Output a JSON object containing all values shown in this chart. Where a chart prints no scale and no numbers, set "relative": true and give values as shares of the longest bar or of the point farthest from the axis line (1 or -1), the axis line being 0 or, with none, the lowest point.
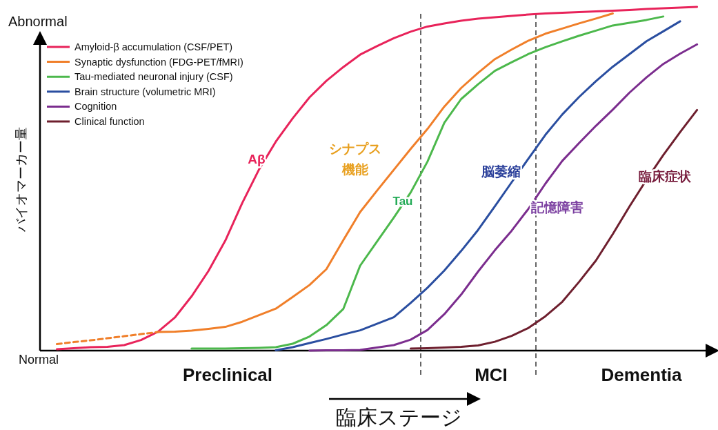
{
  "chart_data": {
    "type": "line",
    "relative": true,
    "tick_labels": false,
    "legend": "top left",
    "xlabel": "臨床ステージ",
    "ylabel": "バイオマーカー量",
    "categories": [
      null,
      null,
      null,
      null,
      null,
      null,
      null,
      null,
      null,
      null,
      null,
      null,
      null,
      null,
      null,
      null,
      null,
      null,
      null,
      null,
      null,
      null,
      null,
      null,
      null,
      null,
      null,
      null,
      null,
      null,
      null,
      null,
      null,
      null,
      null,
      null,
      null,
      null,
      null,
      null,
      null
    ],
    "annotations": [
      "Abnormal",
      "Normal",
      "Aβ",
      "シナプス",
      "機能",
      "Tau",
      "脳萎縮",
      "記憶障害",
      "臨床症状",
      "Preclinical",
      "MCI",
      "Dementia"
    ],
    "series": [
      {
        "name": "Amyloid-β accumulation (CSF/PET)",
        "color": "#e8235a",
        "values": [
          null,
          0.004,
          0.007,
          0.01,
          0.011,
          0.016,
          0.031,
          0.055,
          0.096,
          0.158,
          0.232,
          0.32,
          0.429,
          0.527,
          0.608,
          0.676,
          0.737,
          0.785,
          0.825,
          0.861,
          0.886,
          0.909,
          0.928,
          0.943,
          0.952,
          0.96,
          0.966,
          0.97,
          0.974,
          0.978,
          0.981,
          0.983,
          0.985,
          0.987,
          0.989,
          0.991,
          0.994,
          0.996,
          0.998,
          1.0,
          null
        ]
      },
      {
        "color": "#f07f2a",
        "line_style": "dashed",
        "values": [
          null,
          0.019,
          0.025,
          0.03,
          0.036,
          0.042,
          0.048,
          0.054,
          null,
          null,
          null,
          null,
          null,
          null,
          null,
          null,
          null,
          null,
          null,
          null,
          null,
          null,
          null,
          null,
          null,
          null,
          null,
          null,
          null,
          null,
          null,
          null,
          null,
          null,
          null,
          null,
          null,
          null,
          null,
          null,
          null
        ]
      },
      {
        "name": "Synaptic dysfunction (FDG-PET/fMRI)",
        "color": "#f07f2a",
        "values": [
          null,
          null,
          null,
          null,
          null,
          null,
          null,
          0.054,
          0.055,
          0.058,
          0.063,
          0.069,
          0.084,
          0.103,
          0.122,
          0.156,
          0.191,
          0.237,
          0.321,
          0.403,
          0.465,
          0.526,
          0.587,
          0.645,
          0.71,
          0.764,
          0.808,
          0.848,
          0.876,
          0.902,
          0.922,
          0.937,
          0.952,
          0.966,
          0.981,
          null,
          null,
          null,
          null,
          null,
          null
        ]
      },
      {
        "name": "Tau-mediated neuronal injury (CSF)",
        "color": "#4cb84c",
        "values": [
          null,
          null,
          null,
          null,
          null,
          null,
          null,
          null,
          null,
          0.006,
          0.006,
          0.006,
          0.007,
          0.008,
          0.01,
          0.02,
          0.041,
          0.074,
          0.121,
          0.247,
          0.317,
          0.387,
          0.46,
          0.55,
          0.663,
          0.732,
          0.775,
          0.814,
          0.839,
          0.863,
          0.883,
          0.9,
          0.916,
          0.931,
          0.946,
          0.954,
          0.962,
          0.972,
          null,
          null,
          null
        ]
      },
      {
        "name": "Brain structure (volumetric MRI)",
        "color": "#2a4ea0",
        "values": [
          null,
          null,
          null,
          null,
          null,
          null,
          null,
          null,
          null,
          null,
          null,
          null,
          null,
          null,
          0.001,
          0.01,
          0.022,
          0.034,
          0.047,
          0.059,
          0.078,
          0.097,
          0.139,
          0.183,
          0.233,
          0.29,
          0.351,
          0.42,
          0.49,
          0.559,
          0.628,
          0.687,
          0.738,
          0.784,
          0.826,
          0.863,
          0.9,
          0.929,
          0.958,
          null,
          null
        ]
      },
      {
        "name": "Cognition",
        "color": "#7b2d8e",
        "values": [
          null,
          null,
          null,
          null,
          null,
          null,
          null,
          null,
          null,
          null,
          null,
          null,
          null,
          null,
          null,
          null,
          0.0,
          0.001,
          0.001,
          0.002,
          0.009,
          0.016,
          0.032,
          0.06,
          0.106,
          0.163,
          0.23,
          0.292,
          0.349,
          0.413,
          0.486,
          0.552,
          0.604,
          0.654,
          0.701,
          0.751,
          0.795,
          0.834,
          0.864,
          0.891,
          null
        ]
      },
      {
        "name": "Clinical function",
        "color": "#6e1f2e",
        "values": [
          null,
          null,
          null,
          null,
          null,
          null,
          null,
          null,
          null,
          null,
          null,
          null,
          null,
          null,
          null,
          null,
          null,
          null,
          null,
          null,
          null,
          null,
          0.006,
          0.007,
          0.009,
          0.011,
          0.015,
          0.026,
          0.043,
          0.066,
          0.1,
          0.142,
          0.2,
          0.262,
          0.339,
          0.42,
          0.497,
          0.569,
          0.636,
          0.7,
          null
        ]
      }
    ]
  }
}
